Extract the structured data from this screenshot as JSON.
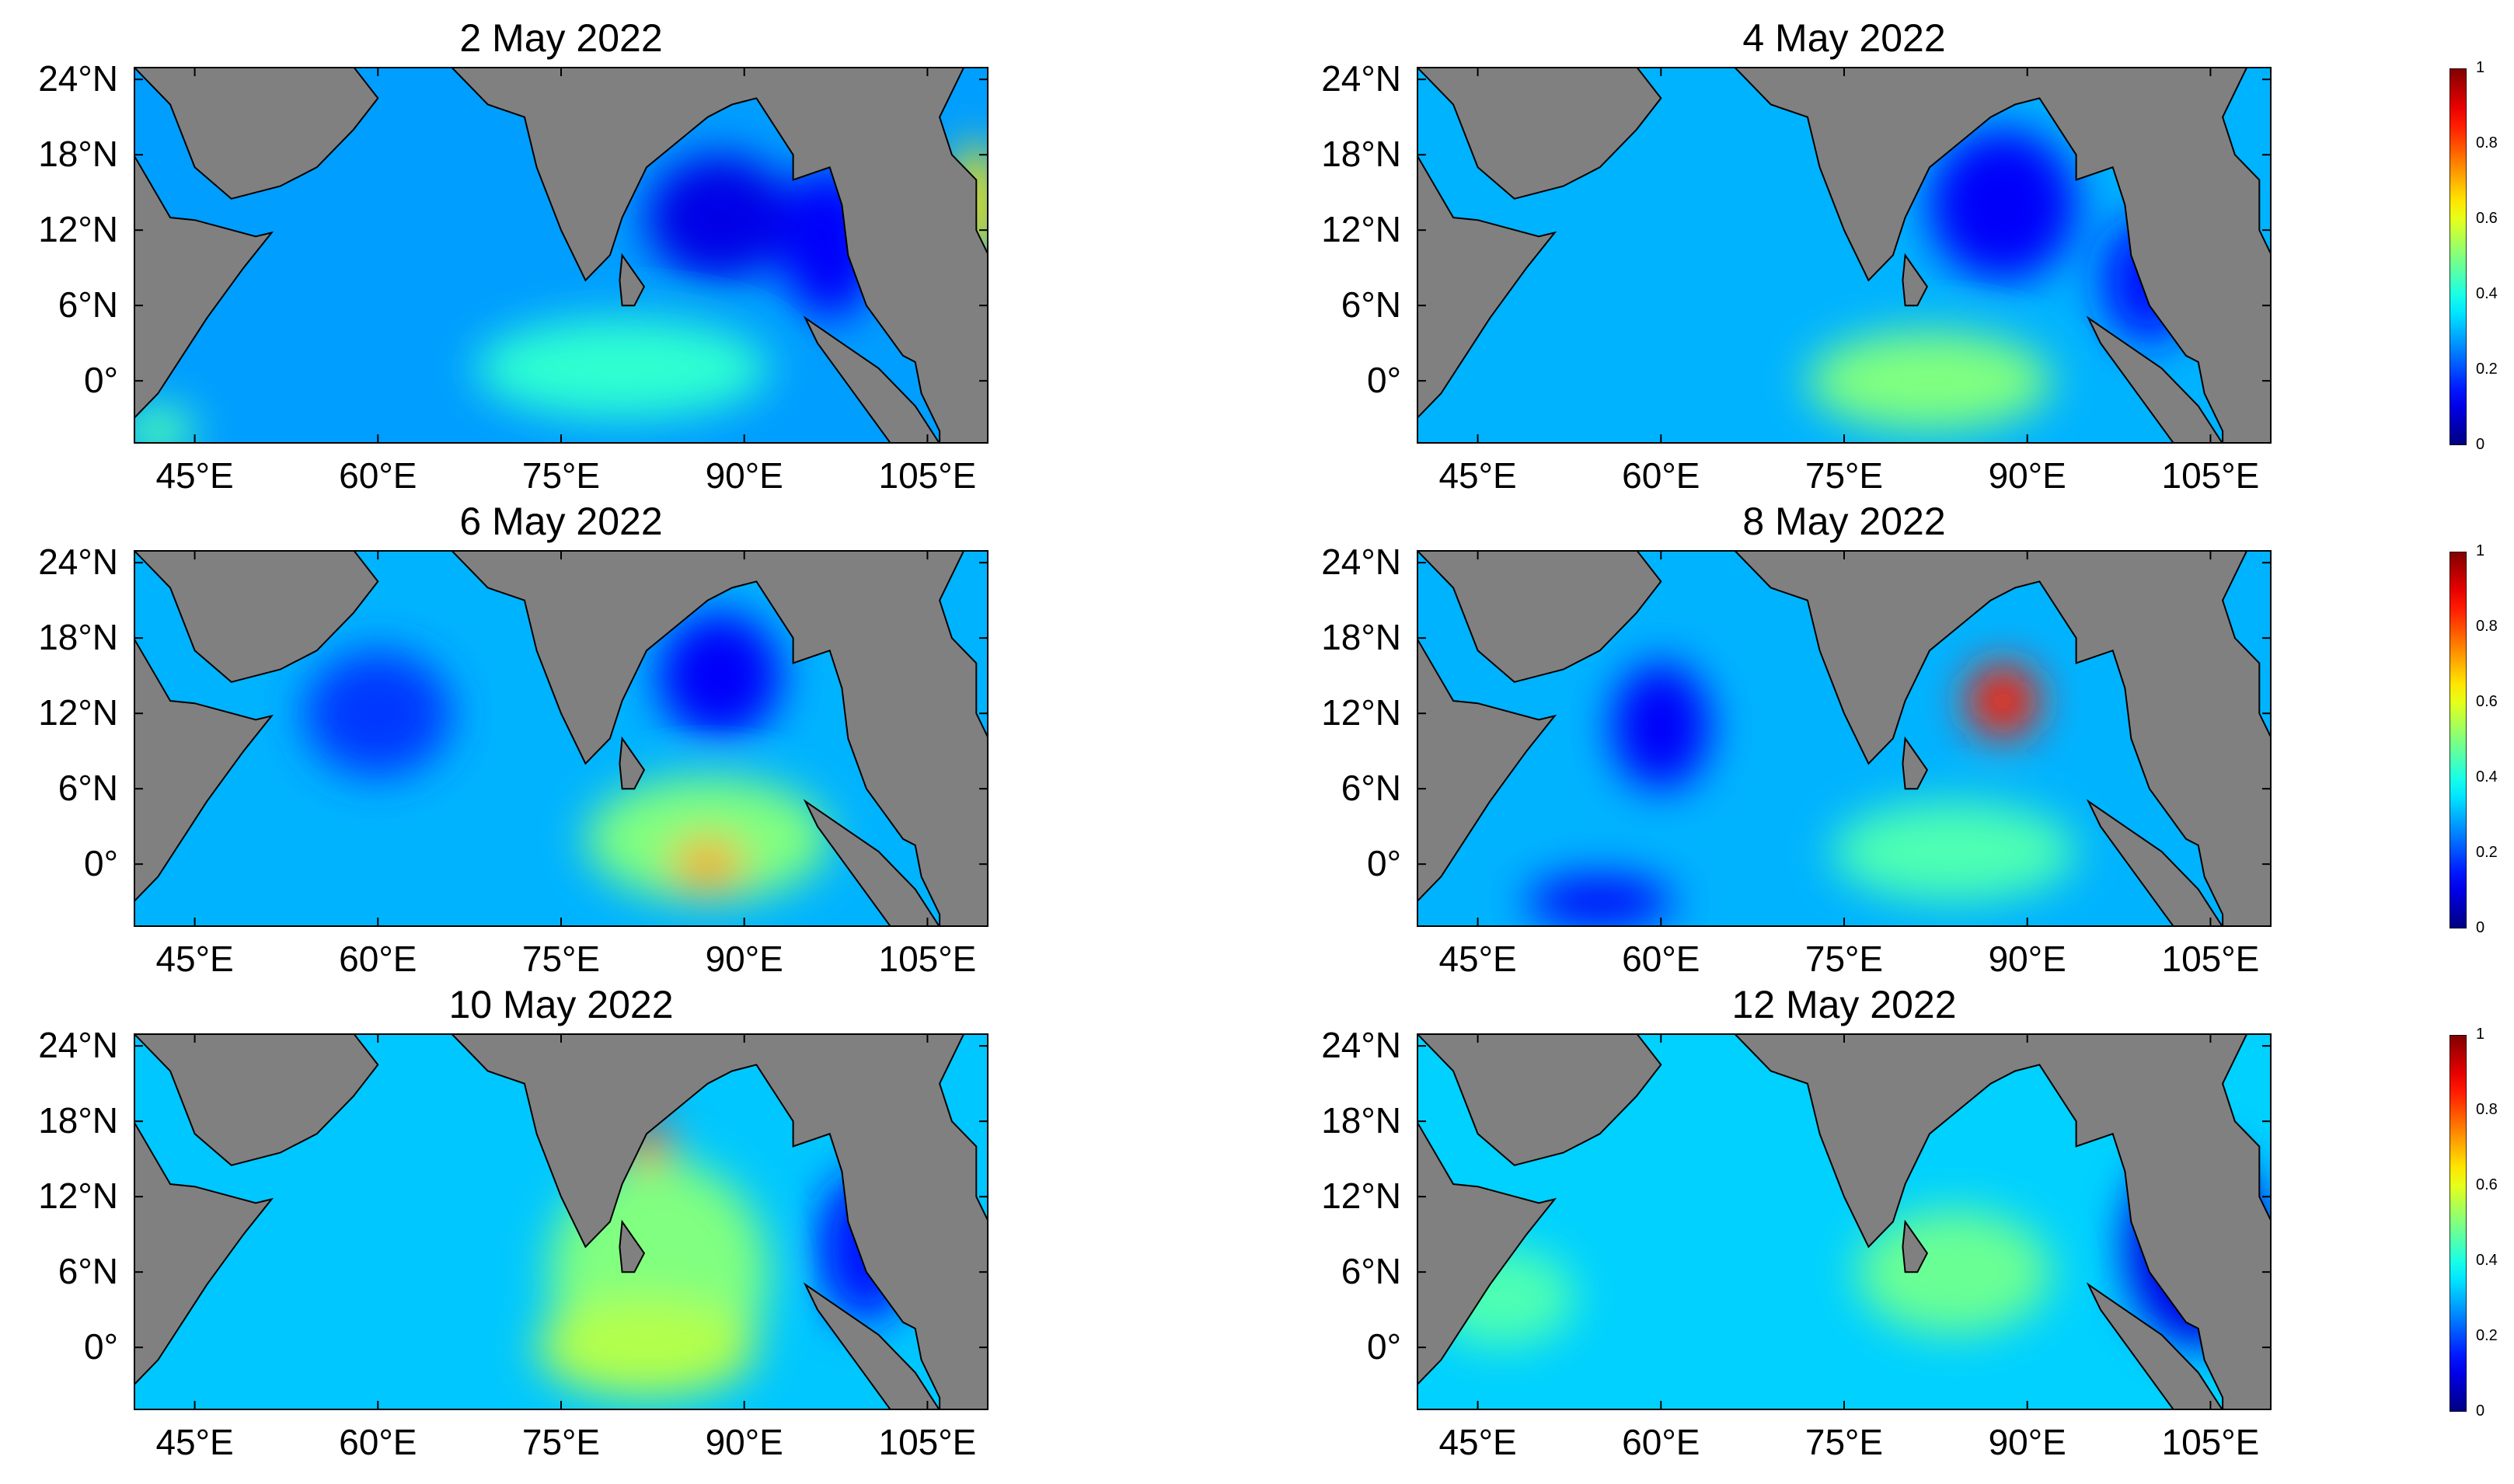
{
  "chart_data": [
    {
      "type": "heatmap",
      "title": "2 May 2022",
      "x_ticks": [
        "45°E",
        "60°E",
        "75°E",
        "90°E",
        "105°E"
      ],
      "x_tick_values": [
        45,
        60,
        75,
        90,
        105
      ],
      "y_ticks": [
        "24°N",
        "18°N",
        "12°N",
        "6°N",
        "0°"
      ],
      "y_tick_values": [
        24,
        18,
        12,
        6,
        0
      ],
      "xlim": [
        40,
        110
      ],
      "ylim": [
        -5,
        25
      ],
      "colorscale": "jet",
      "clim": [
        0,
        1
      ],
      "background_level": 0.28,
      "features": [
        {
          "lon": 80,
          "lat": 1,
          "rx": 12,
          "ry": 4,
          "value": 0.42
        },
        {
          "lon": 88,
          "lat": 13,
          "rx": 6,
          "ry": 5,
          "value": 0.1
        },
        {
          "lon": 97,
          "lat": 11,
          "rx": 4,
          "ry": 6,
          "value": 0.12
        },
        {
          "lon": 109,
          "lat": 14,
          "rx": 2,
          "ry": 5,
          "value": 0.65
        },
        {
          "lon": 42,
          "lat": -4,
          "rx": 3,
          "ry": 2,
          "value": 0.45
        }
      ]
    },
    {
      "type": "heatmap",
      "title": "4 May 2022",
      "x_ticks": [
        "45°E",
        "60°E",
        "75°E",
        "90°E",
        "105°E"
      ],
      "x_tick_values": [
        45,
        60,
        75,
        90,
        105
      ],
      "y_ticks": [
        "24°N",
        "18°N",
        "12°N",
        "6°N",
        "0°"
      ],
      "y_tick_values": [
        24,
        18,
        12,
        6,
        0
      ],
      "xlim": [
        40,
        110
      ],
      "ylim": [
        -5,
        25
      ],
      "colorscale": "jet",
      "clim": [
        0,
        1
      ],
      "background_level": 0.3,
      "features": [
        {
          "lon": 82,
          "lat": 0,
          "rx": 10,
          "ry": 4,
          "value": 0.5
        },
        {
          "lon": 88,
          "lat": 14,
          "rx": 6,
          "ry": 6,
          "value": 0.12
        },
        {
          "lon": 100,
          "lat": 8,
          "rx": 4,
          "ry": 5,
          "value": 0.15
        }
      ]
    },
    {
      "type": "heatmap",
      "title": "6 May 2022",
      "x_ticks": [
        "45°E",
        "60°E",
        "75°E",
        "90°E",
        "105°E"
      ],
      "x_tick_values": [
        45,
        60,
        75,
        90,
        105
      ],
      "y_ticks": [
        "24°N",
        "18°N",
        "12°N",
        "6°N",
        "0°"
      ],
      "y_tick_values": [
        24,
        18,
        12,
        6,
        0
      ],
      "xlim": [
        40,
        110
      ],
      "ylim": [
        -5,
        25
      ],
      "colorscale": "jet",
      "clim": [
        0,
        1
      ],
      "background_level": 0.3,
      "features": [
        {
          "lon": 87,
          "lat": 2,
          "rx": 10,
          "ry": 5,
          "value": 0.5
        },
        {
          "lon": 87,
          "lat": 0,
          "rx": 3,
          "ry": 2,
          "value": 0.72
        },
        {
          "lon": 60,
          "lat": 12,
          "rx": 6,
          "ry": 5,
          "value": 0.18
        },
        {
          "lon": 88,
          "lat": 15,
          "rx": 5,
          "ry": 5,
          "value": 0.12
        }
      ]
    },
    {
      "type": "heatmap",
      "title": "8 May 2022",
      "x_ticks": [
        "45°E",
        "60°E",
        "75°E",
        "90°E",
        "105°E"
      ],
      "x_tick_values": [
        45,
        60,
        75,
        90,
        105
      ],
      "y_ticks": [
        "24°N",
        "18°N",
        "12°N",
        "6°N",
        "0°"
      ],
      "y_tick_values": [
        24,
        18,
        12,
        6,
        0
      ],
      "xlim": [
        40,
        110
      ],
      "ylim": [
        -5,
        25
      ],
      "colorscale": "jet",
      "clim": [
        0,
        1
      ],
      "background_level": 0.3,
      "features": [
        {
          "lon": 88,
          "lat": 13,
          "rx": 3,
          "ry": 3,
          "value": 0.85
        },
        {
          "lon": 84,
          "lat": 1,
          "rx": 10,
          "ry": 4,
          "value": 0.45
        },
        {
          "lon": 60,
          "lat": 11,
          "rx": 4,
          "ry": 5,
          "value": 0.12
        },
        {
          "lon": 55,
          "lat": -3,
          "rx": 6,
          "ry": 2,
          "value": 0.12
        }
      ]
    },
    {
      "type": "heatmap",
      "title": "10 May 2022",
      "x_ticks": [
        "45°E",
        "60°E",
        "75°E",
        "90°E",
        "105°E"
      ],
      "x_tick_values": [
        45,
        60,
        75,
        90,
        105
      ],
      "y_ticks": [
        "24°N",
        "18°N",
        "12°N",
        "6°N",
        "0°"
      ],
      "y_tick_values": [
        24,
        18,
        12,
        6,
        0
      ],
      "xlim": [
        40,
        110
      ],
      "ylim": [
        -5,
        25
      ],
      "colorscale": "jet",
      "clim": [
        0,
        1
      ],
      "background_level": 0.32,
      "features": [
        {
          "lon": 82,
          "lat": 16,
          "rx": 2,
          "ry": 2,
          "value": 0.88
        },
        {
          "lon": 83,
          "lat": 6,
          "rx": 9,
          "ry": 9,
          "value": 0.5
        },
        {
          "lon": 82,
          "lat": 0,
          "rx": 9,
          "ry": 4,
          "value": 0.55
        },
        {
          "lon": 100,
          "lat": 8,
          "rx": 4,
          "ry": 6,
          "value": 0.15
        }
      ]
    },
    {
      "type": "heatmap",
      "title": "12 May 2022",
      "x_ticks": [
        "45°E",
        "60°E",
        "75°E",
        "90°E",
        "105°E"
      ],
      "x_tick_values": [
        45,
        60,
        75,
        90,
        105
      ],
      "y_ticks": [
        "24°N",
        "18°N",
        "12°N",
        "6°N",
        "0°"
      ],
      "y_tick_values": [
        24,
        18,
        12,
        6,
        0
      ],
      "xlim": [
        40,
        110
      ],
      "ylim": [
        -5,
        25
      ],
      "colorscale": "jet",
      "clim": [
        0,
        1
      ],
      "background_level": 0.33,
      "features": [
        {
          "lon": 84,
          "lat": 6,
          "rx": 8,
          "ry": 5,
          "value": 0.48
        },
        {
          "lon": 47,
          "lat": 4,
          "rx": 6,
          "ry": 4,
          "value": 0.45
        },
        {
          "lon": 104,
          "lat": 8,
          "rx": 6,
          "ry": 8,
          "value": 0.1
        }
      ]
    }
  ],
  "colorbar": {
    "ticks": [
      "1",
      "0.8",
      "0.6",
      "0.4",
      "0.2",
      "0"
    ],
    "tick_values": [
      1,
      0.8,
      0.6,
      0.4,
      0.2,
      0
    ]
  },
  "colors": {
    "land": "#808080",
    "coast": "#000000",
    "background": "#ffffff"
  }
}
